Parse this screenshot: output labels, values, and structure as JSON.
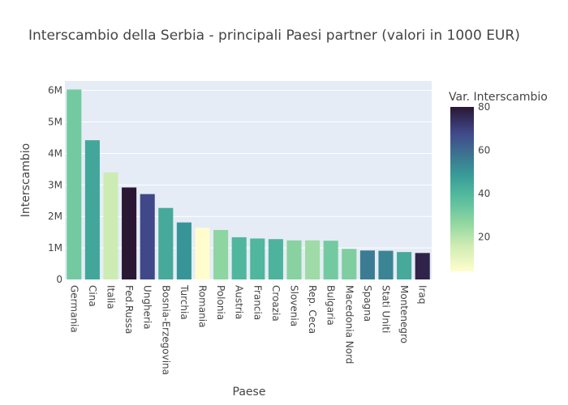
{
  "chart_data": {
    "type": "bar",
    "title": "Interscambio della Serbia - principali Paesi partner (valori in 1000 EUR)",
    "xlabel": "Paese",
    "ylabel": "Interscambio",
    "ylim": [
      0,
      6300000
    ],
    "yticks": [
      0,
      1000000,
      2000000,
      3000000,
      4000000,
      5000000,
      6000000
    ],
    "ytick_labels": [
      "0",
      "1M",
      "2M",
      "3M",
      "4M",
      "5M",
      "6M"
    ],
    "categories": [
      "Germania",
      "Cina",
      "Italia",
      "Fed.Russa",
      "Ungheria",
      "Bosnia-Erzegovina",
      "Turchia",
      "Romania",
      "Polonia",
      "Austria",
      "Francia",
      "Croazia",
      "Slovenia",
      "Rep. Ceca",
      "Bulgaria",
      "Macedonia Nord",
      "Spagna",
      "Stati Uniti",
      "Montenegro",
      "Iraq"
    ],
    "values": [
      6030000,
      4420000,
      3400000,
      2920000,
      2710000,
      2270000,
      1810000,
      1640000,
      1570000,
      1340000,
      1300000,
      1280000,
      1240000,
      1240000,
      1230000,
      970000,
      920000,
      910000,
      870000,
      840000
    ],
    "color_values": [
      32,
      45,
      16,
      80,
      68,
      44,
      50,
      4,
      27,
      40,
      40,
      41,
      28,
      24,
      32,
      30,
      56,
      54,
      44,
      77
    ],
    "grid": true,
    "colorbar": {
      "title": "Var. Interscambio",
      "range": [
        4,
        80
      ],
      "ticks": [
        20,
        40,
        60,
        80
      ],
      "tick_labels": [
        "20",
        "40",
        "60",
        "80"
      ],
      "colorscale": "tempo"
    },
    "colors": {
      "plot_bg": "#e5ecf6",
      "grid": "#ffffff",
      "text": "#444444"
    }
  }
}
